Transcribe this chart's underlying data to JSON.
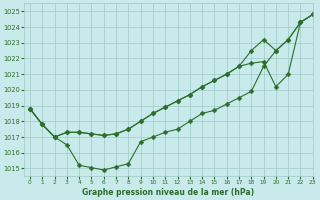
{
  "title": "Graphe pression niveau de la mer (hPa)",
  "bg_color": "#c8eaea",
  "line_color": "#2d6e2d",
  "grid_color": "#a0c8c8",
  "xlim": [
    -0.5,
    23
  ],
  "ylim": [
    1014.5,
    1025.5
  ],
  "yticks": [
    1015,
    1016,
    1017,
    1018,
    1019,
    1020,
    1021,
    1022,
    1023,
    1024,
    1025
  ],
  "xticks": [
    0,
    1,
    2,
    3,
    4,
    5,
    6,
    7,
    8,
    9,
    10,
    11,
    12,
    13,
    14,
    15,
    16,
    17,
    18,
    19,
    20,
    21,
    22,
    23
  ],
  "curve1": [
    1018.8,
    1017.8,
    1017.0,
    1016.5,
    1015.2,
    1015.05,
    1014.9,
    1015.1,
    1015.3,
    1016.7,
    1017.0,
    1017.3,
    1017.5,
    1018.0,
    1018.5,
    1018.7,
    1019.1,
    1019.5,
    1019.9,
    1021.5,
    1022.5,
    1023.2,
    1024.3,
    1024.8
  ],
  "curve2": [
    1018.8,
    1017.8,
    1017.0,
    1017.3,
    1017.3,
    1017.2,
    1017.1,
    1017.2,
    1017.5,
    1018.0,
    1018.5,
    1018.9,
    1019.3,
    1019.7,
    1020.2,
    1020.6,
    1021.0,
    1021.5,
    1021.7,
    1021.8,
    1020.2,
    1021.0,
    1024.3,
    1024.8
  ],
  "curve3": [
    1018.8,
    1017.8,
    1017.0,
    1017.3,
    1017.3,
    1017.2,
    1017.1,
    1017.2,
    1017.5,
    1018.0,
    1018.5,
    1018.9,
    1019.3,
    1019.7,
    1020.2,
    1020.6,
    1021.0,
    1021.5,
    1022.5,
    1023.2,
    1022.5,
    1023.2,
    1024.3,
    1024.8
  ]
}
